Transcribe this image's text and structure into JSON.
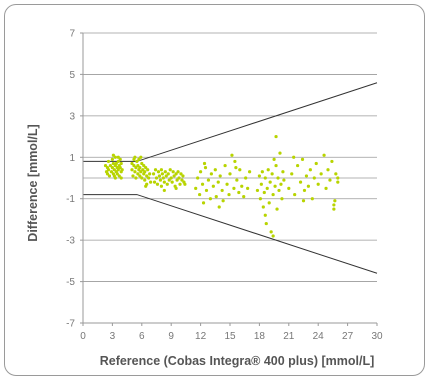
{
  "chart_data": {
    "type": "scatter",
    "title": "",
    "xlabel": "Reference (Cobas Integra® 400 plus) [mmol/L]",
    "ylabel": "Difference [mmol/L]",
    "xlim": [
      0,
      30
    ],
    "ylim": [
      -7,
      7
    ],
    "xticks": [
      "0",
      "3",
      "6",
      "9",
      "12",
      "15",
      "18",
      "21",
      "24",
      "27",
      "30"
    ],
    "yticks": [
      "7",
      "5",
      "3",
      "1",
      "-1",
      "-3",
      "-5",
      "-7"
    ],
    "grid": "horizontal",
    "legend": "none",
    "colors": {
      "points": "#b8d400",
      "limit_lines": "#333333",
      "grid": "#9a9a9a",
      "axis": "#9a9a9a"
    },
    "limit_lines": [
      {
        "x": [
          0,
          5.5,
          30
        ],
        "y": [
          0.8,
          0.8,
          4.6
        ]
      },
      {
        "x": [
          0,
          5.5,
          30
        ],
        "y": [
          -0.8,
          -0.8,
          -4.6
        ]
      }
    ],
    "series": [
      {
        "values": [
          [
            2.3,
            0.6
          ],
          [
            2.4,
            0.3
          ],
          [
            2.5,
            0.5
          ],
          [
            2.5,
            0.2
          ],
          [
            2.6,
            0.8
          ],
          [
            2.6,
            0.4
          ],
          [
            2.7,
            0.1
          ],
          [
            2.8,
            0.6
          ],
          [
            2.9,
            0.3
          ],
          [
            3.0,
            0.9
          ],
          [
            3.0,
            0.5
          ],
          [
            3.1,
            0.2
          ],
          [
            3.1,
            0.7
          ],
          [
            3.2,
            0.4
          ],
          [
            3.2,
            0.1
          ],
          [
            3.3,
            0.6
          ],
          [
            3.3,
            1.0
          ],
          [
            3.4,
            0.3
          ],
          [
            3.4,
            0.7
          ],
          [
            3.5,
            0.5
          ],
          [
            3.5,
            0.2
          ],
          [
            3.6,
            0.8
          ],
          [
            3.6,
            0.4
          ],
          [
            3.7,
            0.6
          ],
          [
            3.7,
            0.1
          ],
          [
            3.8,
            0.9
          ],
          [
            3.8,
            0.5
          ],
          [
            3.9,
            0.3
          ],
          [
            3.9,
            0.7
          ],
          [
            4.0,
            0.4
          ],
          [
            3.1,
            1.1
          ],
          [
            3.3,
            0.0
          ],
          [
            3.6,
            1.0
          ],
          [
            3.9,
            0.0
          ],
          [
            5.0,
            0.7
          ],
          [
            5.0,
            0.4
          ],
          [
            5.1,
            0.1
          ],
          [
            5.2,
            0.6
          ],
          [
            5.2,
            0.9
          ],
          [
            5.3,
            0.3
          ],
          [
            5.4,
            0.5
          ],
          [
            5.4,
            0.0
          ],
          [
            5.5,
            0.8
          ],
          [
            5.6,
            0.2
          ],
          [
            5.6,
            0.6
          ],
          [
            5.7,
            0.4
          ],
          [
            5.7,
            0.9
          ],
          [
            5.8,
            0.1
          ],
          [
            5.8,
            0.5
          ],
          [
            5.9,
            0.3
          ],
          [
            6.0,
            0.7
          ],
          [
            6.0,
            0.0
          ],
          [
            6.1,
            0.4
          ],
          [
            6.2,
            0.2
          ],
          [
            6.2,
            0.6
          ],
          [
            6.3,
            -0.1
          ],
          [
            6.3,
            0.3
          ],
          [
            6.4,
            0.5
          ],
          [
            6.5,
            0.1
          ],
          [
            6.5,
            -0.3
          ],
          [
            6.6,
            0.4
          ],
          [
            6.7,
            0.0
          ],
          [
            6.8,
            0.2
          ],
          [
            6.9,
            -0.2
          ],
          [
            5.3,
            1.0
          ],
          [
            5.9,
            1.0
          ],
          [
            6.4,
            -0.4
          ],
          [
            7.2,
            0.2
          ],
          [
            7.3,
            -0.2
          ],
          [
            7.4,
            0.4
          ],
          [
            7.5,
            0.0
          ],
          [
            7.6,
            -0.3
          ],
          [
            7.7,
            0.3
          ],
          [
            7.8,
            0.1
          ],
          [
            7.9,
            -0.1
          ],
          [
            8.0,
            0.4
          ],
          [
            8.0,
            -0.4
          ],
          [
            8.1,
            0.2
          ],
          [
            8.2,
            0.0
          ],
          [
            8.3,
            -0.2
          ],
          [
            8.4,
            0.3
          ],
          [
            8.5,
            0.1
          ],
          [
            8.6,
            -0.3
          ],
          [
            8.7,
            0.2
          ],
          [
            8.8,
            -0.1
          ],
          [
            8.9,
            0.4
          ],
          [
            9.0,
            0.0
          ],
          [
            9.1,
            -0.2
          ],
          [
            9.2,
            0.3
          ],
          [
            9.3,
            0.1
          ],
          [
            9.4,
            -0.4
          ],
          [
            9.5,
            0.2
          ],
          [
            9.6,
            -0.1
          ],
          [
            9.7,
            0.3
          ],
          [
            9.8,
            0.0
          ],
          [
            9.9,
            -0.3
          ],
          [
            10.0,
            0.2
          ],
          [
            10.1,
            -0.1
          ],
          [
            10.2,
            0.1
          ],
          [
            10.3,
            -0.2
          ],
          [
            10.4,
            -0.3
          ],
          [
            8.3,
            -0.6
          ],
          [
            9.5,
            -0.5
          ],
          [
            11.5,
            -0.5
          ],
          [
            11.7,
            0.0
          ],
          [
            11.9,
            -0.8
          ],
          [
            12.0,
            0.3
          ],
          [
            12.2,
            -0.3
          ],
          [
            12.3,
            -1.2
          ],
          [
            12.5,
            0.5
          ],
          [
            12.6,
            -0.6
          ],
          [
            12.8,
            -0.1
          ],
          [
            13.0,
            -1.0
          ],
          [
            13.1,
            0.2
          ],
          [
            13.3,
            -0.4
          ],
          [
            13.5,
            0.4
          ],
          [
            13.6,
            -0.9
          ],
          [
            13.8,
            -0.2
          ],
          [
            14.0,
            0.1
          ],
          [
            14.2,
            -0.6
          ],
          [
            14.3,
            -1.1
          ],
          [
            14.5,
            0.6
          ],
          [
            14.7,
            -0.3
          ],
          [
            14.9,
            -0.8
          ],
          [
            15.0,
            0.2
          ],
          [
            15.2,
            1.1
          ],
          [
            15.4,
            -0.5
          ],
          [
            15.5,
            0.8
          ],
          [
            15.7,
            -0.1
          ],
          [
            15.9,
            -0.7
          ],
          [
            16.0,
            0.4
          ],
          [
            16.2,
            -0.4
          ],
          [
            16.4,
            -0.9
          ],
          [
            16.6,
            0.0
          ],
          [
            16.8,
            -0.5
          ],
          [
            17.0,
            0.3
          ],
          [
            12.4,
            0.7
          ],
          [
            13.9,
            -1.4
          ],
          [
            15.6,
            0.5
          ],
          [
            17.8,
            -0.6
          ],
          [
            18.0,
            0.1
          ],
          [
            18.1,
            -1.0
          ],
          [
            18.2,
            -0.3
          ],
          [
            18.3,
            0.3
          ],
          [
            18.4,
            -1.4
          ],
          [
            18.5,
            -0.7
          ],
          [
            18.6,
            0.0
          ],
          [
            18.7,
            -2.2
          ],
          [
            18.8,
            -0.5
          ],
          [
            18.9,
            0.4
          ],
          [
            19.0,
            -1.2
          ],
          [
            19.1,
            -0.2
          ],
          [
            19.2,
            -2.6
          ],
          [
            19.3,
            0.2
          ],
          [
            19.4,
            -0.8
          ],
          [
            19.5,
            0.9
          ],
          [
            19.6,
            -0.4
          ],
          [
            19.7,
            0.6
          ],
          [
            19.8,
            -1.5
          ],
          [
            19.9,
            0.0
          ],
          [
            20.0,
            -0.6
          ],
          [
            20.1,
            1.2
          ],
          [
            20.2,
            -0.3
          ],
          [
            20.3,
            -1.0
          ],
          [
            20.4,
            0.3
          ],
          [
            20.5,
            -0.1
          ],
          [
            19.7,
            2.0
          ],
          [
            19.4,
            -2.8
          ],
          [
            18.6,
            -1.8
          ],
          [
            21.0,
            -0.5
          ],
          [
            21.3,
            0.2
          ],
          [
            21.6,
            -0.8
          ],
          [
            21.9,
            0.6
          ],
          [
            22.2,
            -0.2
          ],
          [
            22.4,
            0.9
          ],
          [
            22.6,
            -0.6
          ],
          [
            22.8,
            0.1
          ],
          [
            23.0,
            -0.4
          ],
          [
            23.2,
            0.4
          ],
          [
            23.4,
            -1.0
          ],
          [
            23.6,
            0.0
          ],
          [
            23.8,
            0.7
          ],
          [
            24.0,
            -0.3
          ],
          [
            24.3,
            0.2
          ],
          [
            24.6,
            1.1
          ],
          [
            24.8,
            -0.5
          ],
          [
            25.0,
            0.4
          ],
          [
            25.2,
            -0.1
          ],
          [
            25.4,
            0.8
          ],
          [
            25.6,
            -1.3
          ],
          [
            25.6,
            -1.5
          ],
          [
            25.7,
            -1.1
          ],
          [
            25.8,
            0.2
          ],
          [
            26.0,
            -0.2
          ],
          [
            26.0,
            0.0
          ],
          [
            21.5,
            1.0
          ],
          [
            22.5,
            -1.1
          ]
        ]
      }
    ]
  }
}
